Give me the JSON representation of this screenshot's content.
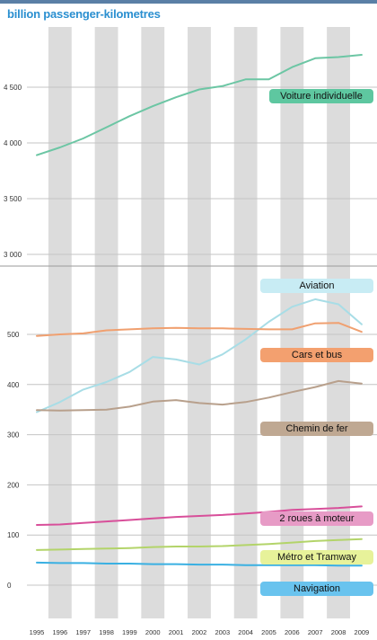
{
  "header": {
    "title": "billion passenger-kilometres"
  },
  "chart_data": {
    "type": "line",
    "title": "billion passenger-kilometres",
    "x": [
      "1995",
      "1996",
      "1997",
      "1998",
      "1999",
      "2000",
      "2001",
      "2002",
      "2003",
      "2004",
      "2005",
      "2006",
      "2007",
      "2008",
      "2009"
    ],
    "upper_ticks": [
      "3 000",
      "3 500",
      "4 000",
      "4 500"
    ],
    "lower_ticks": [
      "0",
      "100",
      "200",
      "300",
      "400",
      "500"
    ],
    "series": [
      {
        "name": "Voiture individuelle",
        "color": "#6cc6a4",
        "panel": "upper",
        "values": [
          3890,
          3960,
          4040,
          4140,
          4240,
          4330,
          4410,
          4480,
          4510,
          4570,
          4570,
          4680,
          4760,
          4770,
          4790
        ]
      },
      {
        "name": "Aviation",
        "color": "#a8dde6",
        "panel": "lower",
        "values": [
          345,
          365,
          390,
          405,
          425,
          455,
          450,
          440,
          460,
          490,
          525,
          555,
          570,
          560,
          520
        ]
      },
      {
        "name": "Cars et bus",
        "color": "#f0a070",
        "panel": "lower",
        "values": [
          497,
          500,
          502,
          508,
          510,
          512,
          513,
          512,
          512,
          511,
          510,
          510,
          522,
          523,
          505
        ]
      },
      {
        "name": "Chemin de fer",
        "color": "#b8a08c",
        "panel": "lower",
        "values": [
          349,
          348,
          349,
          350,
          356,
          366,
          369,
          363,
          360,
          365,
          374,
          385,
          395,
          407,
          402
        ]
      },
      {
        "name": "2 roues à moteur",
        "color": "#d84f9a",
        "panel": "lower",
        "values": [
          120,
          121,
          124,
          127,
          130,
          133,
          136,
          138,
          140,
          143,
          146,
          150,
          152,
          154,
          157
        ]
      },
      {
        "name": "Métro et Tramway",
        "color": "#b3d46a",
        "panel": "lower",
        "values": [
          70,
          71,
          72,
          73,
          74,
          76,
          77,
          77,
          78,
          80,
          82,
          85,
          88,
          90,
          92
        ]
      },
      {
        "name": "Navigation",
        "color": "#3ab0e2",
        "panel": "lower",
        "values": [
          45,
          44,
          44,
          43,
          43,
          42,
          42,
          41,
          41,
          40,
          40,
          40,
          40,
          39,
          39
        ]
      }
    ],
    "legend": [
      {
        "label": "Voiture individuelle",
        "bg": "#5ec7a0"
      },
      {
        "label": "Aviation",
        "bg": "#c8ecf4"
      },
      {
        "label": "Cars et bus",
        "bg": "#f3a06f"
      },
      {
        "label": "Chemin de fer",
        "bg": "#bfa892"
      },
      {
        "label": "2 roues à moteur",
        "bg": "#e79bc6"
      },
      {
        "label": "Métro et Tramway",
        "bg": "#e7f29a"
      },
      {
        "label": "Navigation",
        "bg": "#69c3ee"
      }
    ],
    "grid": true,
    "stripes": "alternating grey vertical bands per year"
  }
}
